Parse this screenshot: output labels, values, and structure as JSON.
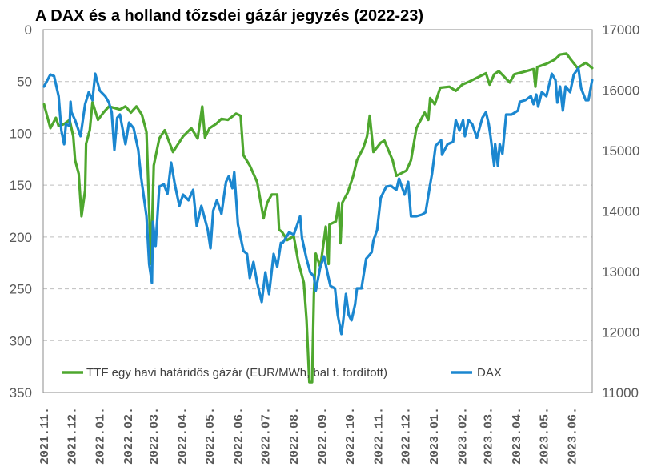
{
  "chart_data": {
    "type": "line",
    "title": "A DAX és a holland tőzsdei gázár jegyzés (2022-23)",
    "grid": true,
    "legend_position": "bottom-inside",
    "x_tick_labels": [
      "2021.11.",
      "2021.12.",
      "2022.01.",
      "2022.02.",
      "2022.03.",
      "2022.04.",
      "2022.05.",
      "2022.06.",
      "2022.07.",
      "2022.08.",
      "2022.09.",
      "2022.10.",
      "2022.11.",
      "2022.12.",
      "2023.01.",
      "2023.02.",
      "2023.03.",
      "2023.04.",
      "2023.05.",
      "2023.06."
    ],
    "x_tick_dates": [
      "2021-11-01",
      "2021-12-01",
      "2022-01-01",
      "2022-02-01",
      "2022-03-01",
      "2022-04-01",
      "2022-05-01",
      "2022-06-01",
      "2022-07-01",
      "2022-08-01",
      "2022-09-01",
      "2022-10-01",
      "2022-11-01",
      "2022-12-01",
      "2023-01-01",
      "2023-02-01",
      "2023-03-01",
      "2023-04-01",
      "2023-05-01",
      "2023-06-01"
    ],
    "xlim": [
      "2021-11-01",
      "2023-07-01"
    ],
    "y_left": {
      "ticks": [
        "0",
        "50",
        "100",
        "150",
        "200",
        "250",
        "300",
        "350"
      ],
      "lim": [
        0,
        350
      ],
      "inverted": true
    },
    "y_right": {
      "ticks": [
        "17000",
        "16000",
        "15000",
        "14000",
        "13000",
        "12000",
        "11000"
      ],
      "lim": [
        11000,
        17000
      ],
      "inverted": false
    },
    "series": [
      {
        "name": "TTF egy havi határidős gázár (EUR/MWh, bal t. fordított)",
        "axis": "left",
        "color": "#4EA72E",
        "points": [
          [
            "2021-11-01",
            72
          ],
          [
            "2021-11-08",
            95
          ],
          [
            "2021-11-14",
            85
          ],
          [
            "2021-11-17",
            93
          ],
          [
            "2021-11-23",
            91
          ],
          [
            "2021-11-29",
            87
          ],
          [
            "2021-12-03",
            103
          ],
          [
            "2021-12-05",
            126
          ],
          [
            "2021-12-09",
            139
          ],
          [
            "2021-12-12",
            180
          ],
          [
            "2021-12-16",
            155
          ],
          [
            "2021-12-17",
            110
          ],
          [
            "2021-12-21",
            97
          ],
          [
            "2021-12-24",
            70
          ],
          [
            "2021-12-30",
            87
          ],
          [
            "2022-01-05",
            80
          ],
          [
            "2022-01-11",
            74
          ],
          [
            "2022-01-23",
            77
          ],
          [
            "2022-01-29",
            74
          ],
          [
            "2022-02-04",
            80
          ],
          [
            "2022-02-10",
            74
          ],
          [
            "2022-02-16",
            82
          ],
          [
            "2022-02-20",
            95
          ],
          [
            "2022-02-21",
            99
          ],
          [
            "2022-02-26",
            226
          ],
          [
            "2022-03-01",
            131
          ],
          [
            "2022-03-07",
            105
          ],
          [
            "2022-03-13",
            97
          ],
          [
            "2022-03-22",
            118
          ],
          [
            "2022-04-02",
            103
          ],
          [
            "2022-04-11",
            95
          ],
          [
            "2022-04-18",
            105
          ],
          [
            "2022-04-23",
            74
          ],
          [
            "2022-04-26",
            104
          ],
          [
            "2022-05-01",
            95
          ],
          [
            "2022-05-08",
            91
          ],
          [
            "2022-05-14",
            86
          ],
          [
            "2022-05-21",
            87
          ],
          [
            "2022-05-30",
            81
          ],
          [
            "2022-06-04",
            83
          ],
          [
            "2022-06-07",
            121
          ],
          [
            "2022-06-14",
            131
          ],
          [
            "2022-06-22",
            147
          ],
          [
            "2022-06-29",
            182
          ],
          [
            "2022-07-03",
            167
          ],
          [
            "2022-07-08",
            159
          ],
          [
            "2022-07-14",
            159
          ],
          [
            "2022-07-16",
            193
          ],
          [
            "2022-07-19",
            195
          ],
          [
            "2022-07-25",
            203
          ],
          [
            "2022-08-01",
            199
          ],
          [
            "2022-08-06",
            224
          ],
          [
            "2022-08-12",
            244
          ],
          [
            "2022-08-15",
            280
          ],
          [
            "2022-08-18",
            340
          ],
          [
            "2022-08-21",
            340
          ],
          [
            "2022-08-23",
            255
          ],
          [
            "2022-08-25",
            216
          ],
          [
            "2022-08-30",
            229
          ],
          [
            "2022-09-05",
            190
          ],
          [
            "2022-09-08",
            226
          ],
          [
            "2022-09-09",
            188
          ],
          [
            "2022-09-16",
            185
          ],
          [
            "2022-09-19",
            167
          ],
          [
            "2022-09-21",
            206
          ],
          [
            "2022-09-23",
            167
          ],
          [
            "2022-09-29",
            157
          ],
          [
            "2022-10-05",
            141
          ],
          [
            "2022-10-09",
            126
          ],
          [
            "2022-10-16",
            114
          ],
          [
            "2022-10-20",
            103
          ],
          [
            "2022-10-23",
            83
          ],
          [
            "2022-10-27",
            118
          ],
          [
            "2022-11-04",
            109
          ],
          [
            "2022-11-08",
            107
          ],
          [
            "2022-11-17",
            126
          ],
          [
            "2022-11-21",
            141
          ],
          [
            "2022-12-02",
            136
          ],
          [
            "2022-12-07",
            126
          ],
          [
            "2022-12-13",
            95
          ],
          [
            "2022-12-22",
            80
          ],
          [
            "2022-12-26",
            87
          ],
          [
            "2022-12-28",
            66
          ],
          [
            "2023-01-02",
            72
          ],
          [
            "2023-01-08",
            56
          ],
          [
            "2023-01-18",
            55
          ],
          [
            "2023-01-25",
            59
          ],
          [
            "2023-02-01",
            53
          ],
          [
            "2023-02-09",
            50
          ],
          [
            "2023-02-27",
            42
          ],
          [
            "2023-03-03",
            53
          ],
          [
            "2023-03-08",
            43
          ],
          [
            "2023-03-13",
            40
          ],
          [
            "2023-03-25",
            51
          ],
          [
            "2023-03-30",
            43
          ],
          [
            "2023-04-08",
            41
          ],
          [
            "2023-04-20",
            38
          ],
          [
            "2023-04-22",
            55
          ],
          [
            "2023-04-24",
            36
          ],
          [
            "2023-05-04",
            33
          ],
          [
            "2023-05-13",
            29
          ],
          [
            "2023-05-19",
            24
          ],
          [
            "2023-05-26",
            23
          ],
          [
            "2023-05-30",
            28
          ],
          [
            "2023-06-07",
            37
          ],
          [
            "2023-06-16",
            32
          ],
          [
            "2023-06-23",
            37
          ]
        ]
      },
      {
        "name": "DAX",
        "axis": "right",
        "color": "#1B87D0",
        "points": [
          [
            "2021-11-01",
            16060
          ],
          [
            "2021-11-08",
            16258
          ],
          [
            "2021-11-12",
            16232
          ],
          [
            "2021-11-17",
            15900
          ],
          [
            "2021-11-20",
            15331
          ],
          [
            "2021-11-23",
            15106
          ],
          [
            "2021-11-25",
            15437
          ],
          [
            "2021-11-29",
            15411
          ],
          [
            "2021-11-30",
            15808
          ],
          [
            "2021-12-01",
            15636
          ],
          [
            "2021-12-05",
            15503
          ],
          [
            "2021-12-11",
            15238
          ],
          [
            "2021-12-16",
            15768
          ],
          [
            "2021-12-20",
            15967
          ],
          [
            "2021-12-24",
            15834
          ],
          [
            "2021-12-27",
            16272
          ],
          [
            "2022-01-01",
            15994
          ],
          [
            "2022-01-07",
            15900
          ],
          [
            "2022-01-11",
            15795
          ],
          [
            "2022-01-14",
            15636
          ],
          [
            "2022-01-17",
            15013
          ],
          [
            "2022-01-20",
            15543
          ],
          [
            "2022-01-23",
            15596
          ],
          [
            "2022-01-29",
            15106
          ],
          [
            "2022-02-02",
            15464
          ],
          [
            "2022-02-07",
            15371
          ],
          [
            "2022-02-12",
            15013
          ],
          [
            "2022-02-15",
            14576
          ],
          [
            "2022-02-21",
            13914
          ],
          [
            "2022-02-24",
            13119
          ],
          [
            "2022-02-27",
            12815
          ],
          [
            "2022-02-28",
            13821
          ],
          [
            "2022-03-03",
            13424
          ],
          [
            "2022-03-07",
            14404
          ],
          [
            "2022-03-12",
            14444
          ],
          [
            "2022-03-16",
            14285
          ],
          [
            "2022-03-20",
            14801
          ],
          [
            "2022-03-24",
            14444
          ],
          [
            "2022-03-29",
            14086
          ],
          [
            "2022-04-02",
            14272
          ],
          [
            "2022-04-08",
            14179
          ],
          [
            "2022-04-13",
            14351
          ],
          [
            "2022-04-17",
            13755
          ],
          [
            "2022-04-22",
            14086
          ],
          [
            "2022-04-29",
            13689
          ],
          [
            "2022-05-02",
            13384
          ],
          [
            "2022-05-05",
            14007
          ],
          [
            "2022-05-09",
            14179
          ],
          [
            "2022-05-14",
            13954
          ],
          [
            "2022-05-19",
            14484
          ],
          [
            "2022-05-22",
            14576
          ],
          [
            "2022-05-26",
            14378
          ],
          [
            "2022-05-28",
            14642
          ],
          [
            "2022-06-01",
            13781
          ],
          [
            "2022-06-07",
            13344
          ],
          [
            "2022-06-11",
            13291
          ],
          [
            "2022-06-14",
            12894
          ],
          [
            "2022-06-18",
            13159
          ],
          [
            "2022-06-22",
            12815
          ],
          [
            "2022-06-27",
            12497
          ],
          [
            "2022-07-01",
            12987
          ],
          [
            "2022-07-05",
            12629
          ],
          [
            "2022-07-10",
            13291
          ],
          [
            "2022-07-14",
            13079
          ],
          [
            "2022-07-18",
            13476
          ],
          [
            "2022-07-20",
            13476
          ],
          [
            "2022-07-27",
            13649
          ],
          [
            "2022-08-01",
            13609
          ],
          [
            "2022-08-05",
            13781
          ],
          [
            "2022-08-08",
            13914
          ],
          [
            "2022-08-10",
            13556
          ],
          [
            "2022-08-15",
            13212
          ],
          [
            "2022-08-19",
            12987
          ],
          [
            "2022-08-23",
            12921
          ],
          [
            "2022-08-25",
            12682
          ],
          [
            "2022-08-30",
            13079
          ],
          [
            "2022-09-03",
            13252
          ],
          [
            "2022-09-08",
            12894
          ],
          [
            "2022-09-10",
            12762
          ],
          [
            "2022-09-15",
            12722
          ],
          [
            "2022-09-18",
            12285
          ],
          [
            "2022-09-22",
            11967
          ],
          [
            "2022-09-24",
            12192
          ],
          [
            "2022-09-27",
            12629
          ],
          [
            "2022-09-30",
            12285
          ],
          [
            "2022-10-03",
            12192
          ],
          [
            "2022-10-07",
            12457
          ],
          [
            "2022-10-09",
            12722
          ],
          [
            "2022-10-14",
            12722
          ],
          [
            "2022-10-19",
            13212
          ],
          [
            "2022-10-25",
            13318
          ],
          [
            "2022-10-27",
            13516
          ],
          [
            "2022-10-31",
            13689
          ],
          [
            "2022-11-04",
            14219
          ],
          [
            "2022-11-10",
            14404
          ],
          [
            "2022-11-15",
            14417
          ],
          [
            "2022-11-21",
            14351
          ],
          [
            "2022-11-24",
            14537
          ],
          [
            "2022-11-30",
            14272
          ],
          [
            "2022-12-04",
            14484
          ],
          [
            "2022-12-07",
            13914
          ],
          [
            "2022-12-13",
            13914
          ],
          [
            "2022-12-19",
            13940
          ],
          [
            "2022-12-23",
            13980
          ],
          [
            "2022-12-28",
            14444
          ],
          [
            "2022-12-30",
            14616
          ],
          [
            "2023-01-03",
            15079
          ],
          [
            "2023-01-09",
            15172
          ],
          [
            "2023-01-10",
            14933
          ],
          [
            "2023-01-16",
            15106
          ],
          [
            "2023-01-22",
            15146
          ],
          [
            "2023-01-25",
            15503
          ],
          [
            "2023-01-29",
            15331
          ],
          [
            "2023-02-02",
            15503
          ],
          [
            "2023-02-04",
            15238
          ],
          [
            "2023-02-08",
            15503
          ],
          [
            "2023-02-12",
            15437
          ],
          [
            "2023-02-17",
            15212
          ],
          [
            "2023-02-23",
            15543
          ],
          [
            "2023-02-27",
            15636
          ],
          [
            "2023-03-02",
            15437
          ],
          [
            "2023-03-04",
            15238
          ],
          [
            "2023-03-08",
            14748
          ],
          [
            "2023-03-09",
            15106
          ],
          [
            "2023-03-12",
            14748
          ],
          [
            "2023-03-14",
            15106
          ],
          [
            "2023-03-17",
            14947
          ],
          [
            "2023-03-21",
            15596
          ],
          [
            "2023-03-27",
            15596
          ],
          [
            "2023-04-03",
            15662
          ],
          [
            "2023-04-05",
            15808
          ],
          [
            "2023-04-11",
            15834
          ],
          [
            "2023-04-17",
            15901
          ],
          [
            "2023-04-20",
            15768
          ],
          [
            "2023-04-23",
            15927
          ],
          [
            "2023-04-25",
            15728
          ],
          [
            "2023-04-29",
            15967
          ],
          [
            "2023-05-04",
            15900
          ],
          [
            "2023-05-10",
            16272
          ],
          [
            "2023-05-14",
            16166
          ],
          [
            "2023-05-16",
            15795
          ],
          [
            "2023-05-19",
            16060
          ],
          [
            "2023-05-22",
            15662
          ],
          [
            "2023-05-25",
            16060
          ],
          [
            "2023-05-30",
            15967
          ],
          [
            "2023-06-03",
            16258
          ],
          [
            "2023-06-08",
            16364
          ],
          [
            "2023-06-11",
            16033
          ],
          [
            "2023-06-16",
            15834
          ],
          [
            "2023-06-19",
            15834
          ],
          [
            "2023-06-23",
            16166
          ]
        ]
      }
    ]
  }
}
